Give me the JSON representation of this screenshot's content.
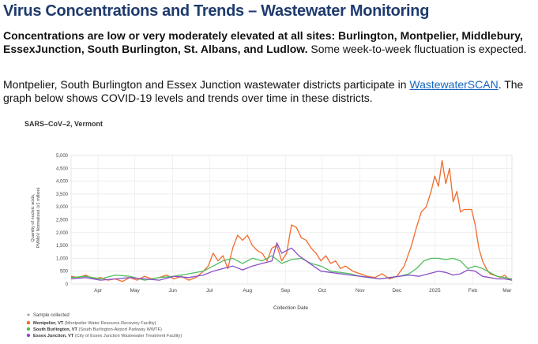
{
  "heading": "Virus Concentrations and Trends – Wastewater Monitoring",
  "intro": {
    "bold": "Concentrations are low or very moderately elevated at all sites: Burlington, Montpelier, Middlebury, EssexJunction, South Burlington, St. Albans, and Ludlow.",
    "normal": " Some week-to-week fluctuation is expected."
  },
  "participation": {
    "before_link": "Montpelier, South Burlington and Essex Junction wastewater districts participate in ",
    "link_text": "WastewaterSCAN",
    "after_link": ". The graph below shows COVID-19 levels and trends over time in these districts."
  },
  "chart_data": {
    "type": "line",
    "title": "SARS–CoV–2, Vermont",
    "xlabel": "Collection Date",
    "ylabel_line1": "Quantity of nucleic acids,",
    "ylabel_line2": "PMMoV Normalized (x1 million)",
    "ylim": [
      0,
      5000
    ],
    "y_ticks": [
      "0",
      "500",
      "1,000",
      "1,500",
      "2,000",
      "2,500",
      "3,000",
      "3,500",
      "4,000",
      "4,500",
      "5,000"
    ],
    "y_tick_values": [
      0,
      500,
      1000,
      1500,
      2000,
      2500,
      3000,
      3500,
      4000,
      4500,
      5000
    ],
    "x_range_days": [
      0,
      360
    ],
    "x_ticks": [
      {
        "label": "Apr",
        "day": 22
      },
      {
        "label": "May",
        "day": 52
      },
      {
        "label": "Jun",
        "day": 83
      },
      {
        "label": "Jul",
        "day": 113
      },
      {
        "label": "Aug",
        "day": 144
      },
      {
        "label": "Sep",
        "day": 175
      },
      {
        "label": "Oct",
        "day": 205
      },
      {
        "label": "Nov",
        "day": 236
      },
      {
        "label": "Dec",
        "day": 266
      },
      {
        "label": "2025",
        "day": 297
      },
      {
        "label": "Feb",
        "day": 328
      },
      {
        "label": "Mar",
        "day": 356
      }
    ],
    "grid": true,
    "legend_position": "bottom-left",
    "sample_collected_label": "Sample collected",
    "series": [
      {
        "name": "Montpelier, VT",
        "detail": " (Montpelier Water Resource Recovery Facility)",
        "color": "#f26b2c",
        "x": [
          0,
          6,
          12,
          18,
          24,
          30,
          36,
          42,
          48,
          54,
          60,
          66,
          72,
          78,
          84,
          90,
          96,
          102,
          108,
          112,
          116,
          120,
          124,
          128,
          132,
          136,
          140,
          144,
          148,
          152,
          156,
          160,
          164,
          168,
          172,
          176,
          180,
          184,
          188,
          192,
          196,
          200,
          204,
          208,
          212,
          216,
          220,
          224,
          230,
          236,
          242,
          248,
          254,
          260,
          266,
          272,
          278,
          282,
          286,
          290,
          294,
          297,
          300,
          303,
          306,
          309,
          312,
          315,
          318,
          321,
          324,
          327,
          330,
          333,
          336,
          339,
          342,
          345,
          348,
          351,
          354,
          357,
          360
        ],
        "y": [
          300,
          250,
          350,
          200,
          250,
          150,
          200,
          100,
          250,
          150,
          300,
          200,
          250,
          350,
          200,
          300,
          150,
          250,
          500,
          700,
          1200,
          900,
          1100,
          600,
          1400,
          1900,
          1700,
          1900,
          1500,
          1300,
          1200,
          900,
          1400,
          1500,
          900,
          1200,
          2300,
          2200,
          1800,
          1700,
          1400,
          1200,
          900,
          1100,
          800,
          900,
          600,
          700,
          500,
          400,
          300,
          250,
          400,
          200,
          300,
          700,
          1500,
          2200,
          2800,
          3000,
          3600,
          4200,
          3800,
          4800,
          3900,
          4500,
          3200,
          3600,
          2800,
          2900,
          2900,
          2900,
          2300,
          1400,
          900,
          600,
          400,
          350,
          300,
          250,
          350,
          200,
          150
        ]
      },
      {
        "name": "South Burlington, VT",
        "detail": " (South Burlington-Airport Parkway WWTF)",
        "color": "#4fbe5f",
        "x": [
          0,
          12,
          24,
          36,
          48,
          60,
          72,
          84,
          96,
          108,
          116,
          124,
          132,
          140,
          148,
          156,
          164,
          172,
          180,
          188,
          196,
          204,
          212,
          220,
          228,
          236,
          244,
          252,
          260,
          268,
          276,
          282,
          288,
          294,
          300,
          306,
          312,
          318,
          324,
          330,
          336,
          342,
          348,
          354,
          360
        ],
        "y": [
          250,
          300,
          200,
          350,
          300,
          150,
          250,
          300,
          400,
          500,
          700,
          900,
          1000,
          800,
          1000,
          900,
          1100,
          800,
          950,
          1000,
          800,
          700,
          500,
          450,
          400,
          300,
          250,
          200,
          250,
          300,
          400,
          600,
          900,
          1000,
          1000,
          950,
          1000,
          900,
          600,
          700,
          600,
          450,
          300,
          250,
          200
        ]
      },
      {
        "name": "Essex Junction, VT",
        "detail": " (City of Essex Junction Wastewater Treatment Facility)",
        "color": "#8a4fc8",
        "x": [
          0,
          12,
          24,
          36,
          48,
          60,
          72,
          84,
          96,
          108,
          116,
          124,
          132,
          140,
          148,
          156,
          164,
          168,
          172,
          176,
          180,
          186,
          192,
          198,
          204,
          212,
          220,
          228,
          236,
          244,
          252,
          260,
          268,
          276,
          284,
          292,
          300,
          306,
          312,
          318,
          324,
          330,
          336,
          342,
          348,
          354,
          360
        ],
        "y": [
          200,
          250,
          150,
          200,
          250,
          200,
          150,
          300,
          250,
          350,
          500,
          600,
          700,
          550,
          700,
          800,
          900,
          1600,
          1200,
          1300,
          1400,
          1100,
          900,
          700,
          500,
          450,
          400,
          350,
          300,
          250,
          200,
          250,
          300,
          350,
          300,
          400,
          500,
          450,
          350,
          400,
          550,
          500,
          300,
          250,
          200,
          200,
          150
        ]
      }
    ]
  }
}
